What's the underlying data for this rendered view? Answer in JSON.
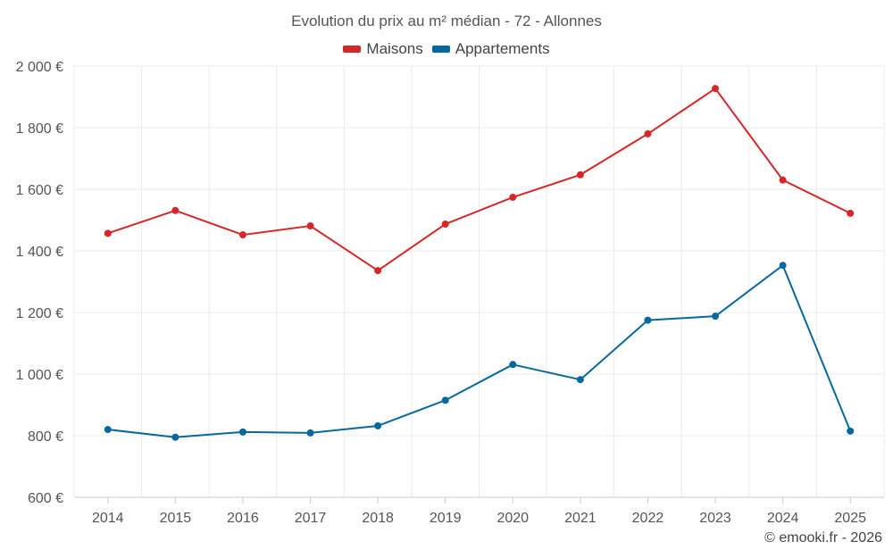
{
  "chart_data": {
    "type": "line",
    "title": "Evolution du prix au m² médian - 72 - Allonnes",
    "categories": [
      "2014",
      "2015",
      "2016",
      "2017",
      "2018",
      "2019",
      "2020",
      "2021",
      "2022",
      "2023",
      "2024",
      "2025"
    ],
    "series": [
      {
        "name": "Maisons",
        "color": "#d62728",
        "values": [
          1457,
          1531,
          1452,
          1481,
          1336,
          1487,
          1574,
          1647,
          1780,
          1927,
          1630,
          1522
        ]
      },
      {
        "name": "Appartements",
        "color": "#07689f",
        "values": [
          820,
          795,
          812,
          809,
          832,
          915,
          1031,
          982,
          1175,
          1188,
          1353,
          815
        ]
      }
    ],
    "y_ticks": [
      600,
      800,
      1000,
      1200,
      1400,
      1600,
      1800,
      2000
    ],
    "y_tick_labels": [
      "600 €",
      "800 €",
      "1 000 €",
      "1 200 €",
      "1 400 €",
      "1 600 €",
      "1 800 €",
      "2 000 €"
    ],
    "ylim": [
      600,
      2000
    ],
    "xlabel": "",
    "ylabel": "",
    "grid": true,
    "legend_position": "top-center"
  },
  "credit": "© emooki.fr - 2026"
}
